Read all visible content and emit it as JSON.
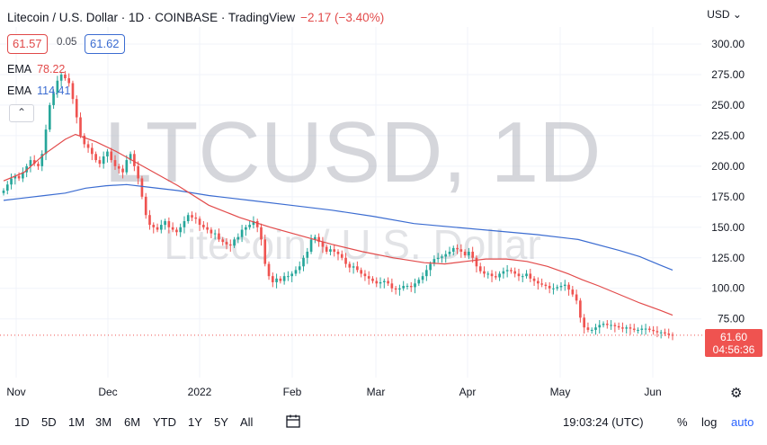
{
  "header": {
    "title": "Litecoin / U.S. Dollar · 1D · COINBASE · TradingView",
    "change": "−2.17 (−3.40%)"
  },
  "quote": {
    "bid": "61.57",
    "spread": "0.05",
    "ask": "61.62"
  },
  "indicators": [
    {
      "name": "EMA",
      "value": "78.22",
      "color": "#e24a4a"
    },
    {
      "name": "EMA",
      "value": "114.41",
      "color": "#3b6cd1"
    }
  ],
  "collapse_symbol": "⌃",
  "watermark": {
    "symbol": "LTCUSD, 1D",
    "name": "Litecoin / U.S. Dollar"
  },
  "currency_selector": "USD ⌄",
  "last_price": {
    "value": "61.60",
    "countdown": "04:56:36"
  },
  "timeframes": [
    "1D",
    "5D",
    "1M",
    "3M",
    "6M",
    "YTD",
    "1Y",
    "5Y",
    "All"
  ],
  "bottom_right": {
    "time": "19:03:24 (UTC)",
    "percent": "%",
    "log": "log",
    "auto": "auto"
  },
  "chart_data": {
    "type": "candlestick",
    "y_ticks": [
      "300.00",
      "275.00",
      "250.00",
      "225.00",
      "200.00",
      "175.00",
      "150.00",
      "125.00",
      "100.00",
      "75.00"
    ],
    "ylim": [
      50,
      310
    ],
    "x_ticks": [
      "Nov",
      "Dec",
      "2022",
      "Feb",
      "Mar",
      "Apr",
      "May",
      "Jun"
    ],
    "colors": {
      "up": "#26a69a",
      "down": "#ef5350",
      "ema_fast": "#e24a4a",
      "ema_slow": "#3b6cd1",
      "last": "#ef5350"
    },
    "ema_fast": [
      [
        0,
        188
      ],
      [
        10,
        195
      ],
      [
        20,
        210
      ],
      [
        30,
        222
      ],
      [
        35,
        226
      ],
      [
        45,
        220
      ],
      [
        55,
        212
      ],
      [
        70,
        198
      ],
      [
        85,
        184
      ],
      [
        100,
        168
      ],
      [
        115,
        158
      ],
      [
        130,
        150
      ],
      [
        145,
        143
      ],
      [
        160,
        136
      ],
      [
        175,
        130
      ],
      [
        190,
        125
      ],
      [
        205,
        121
      ],
      [
        215,
        120
      ],
      [
        225,
        122
      ],
      [
        235,
        124
      ],
      [
        245,
        124
      ],
      [
        255,
        122
      ],
      [
        265,
        118
      ],
      [
        275,
        112
      ],
      [
        282,
        107
      ],
      [
        290,
        102
      ],
      [
        300,
        95
      ],
      [
        310,
        88
      ],
      [
        320,
        82
      ],
      [
        326,
        78
      ]
    ],
    "ema_slow": [
      [
        0,
        172
      ],
      [
        10,
        174
      ],
      [
        20,
        176
      ],
      [
        30,
        178
      ],
      [
        40,
        182
      ],
      [
        50,
        184
      ],
      [
        60,
        185
      ],
      [
        70,
        183
      ],
      [
        85,
        180
      ],
      [
        100,
        176
      ],
      [
        120,
        172
      ],
      [
        140,
        168
      ],
      [
        160,
        164
      ],
      [
        180,
        159
      ],
      [
        200,
        153
      ],
      [
        220,
        150
      ],
      [
        240,
        147
      ],
      [
        260,
        144
      ],
      [
        280,
        140
      ],
      [
        300,
        131
      ],
      [
        310,
        126
      ],
      [
        320,
        119
      ],
      [
        326,
        115
      ]
    ],
    "last": 61.6,
    "closes": [
      180,
      185,
      190,
      192,
      190,
      195,
      200,
      205,
      202,
      200,
      210,
      230,
      250,
      260,
      270,
      275,
      272,
      268,
      255,
      240,
      225,
      218,
      215,
      210,
      205,
      202,
      208,
      212,
      205,
      200,
      198,
      195,
      205,
      210,
      200,
      190,
      175,
      160,
      152,
      150,
      148,
      152,
      155,
      150,
      148,
      146,
      150,
      155,
      160,
      158,
      157,
      152,
      150,
      148,
      145,
      145,
      140,
      138,
      136,
      135,
      140,
      142,
      148,
      150,
      152,
      155,
      150,
      140,
      120,
      110,
      105,
      108,
      106,
      110,
      110,
      112,
      115,
      118,
      125,
      130,
      140,
      142,
      138,
      134,
      130,
      132,
      130,
      128,
      125,
      120,
      117,
      118,
      115,
      112,
      110,
      108,
      106,
      104,
      105,
      106,
      104,
      100,
      99,
      100,
      102,
      102,
      101,
      104,
      107,
      110,
      115,
      120,
      124,
      125,
      126,
      128,
      130,
      133,
      132,
      130,
      127,
      130,
      125,
      118,
      114,
      112,
      112,
      110,
      109,
      112,
      114,
      115,
      114,
      112,
      110,
      110,
      112,
      108,
      106,
      104,
      103,
      102,
      100,
      100,
      101,
      102,
      103,
      99,
      95,
      90,
      76,
      68,
      66,
      66,
      68,
      70,
      71,
      70,
      70,
      69,
      68,
      67,
      68,
      67,
      66,
      66,
      67,
      67,
      66,
      65,
      64,
      64,
      63,
      62,
      61.6
    ]
  }
}
